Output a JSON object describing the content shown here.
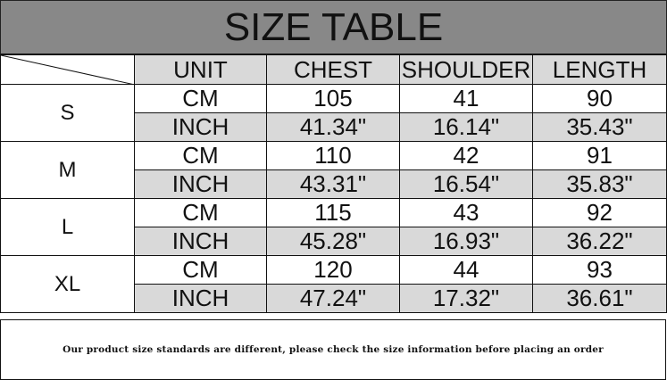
{
  "title": "SIZE TABLE",
  "headers": [
    "UNIT",
    "CHEST",
    "SHOULDER",
    "LENGTH"
  ],
  "rows": [
    {
      "size": "S",
      "cm": {
        "unit": "CM",
        "chest": "105",
        "shoulder": "41",
        "length": "90"
      },
      "inch": {
        "unit": "INCH",
        "chest": "41.34\"",
        "shoulder": "16.14\"",
        "length": "35.43\""
      }
    },
    {
      "size": "M",
      "cm": {
        "unit": "CM",
        "chest": "110",
        "shoulder": "42",
        "length": "91"
      },
      "inch": {
        "unit": "INCH",
        "chest": "43.31\"",
        "shoulder": "16.54\"",
        "length": "35.83\""
      }
    },
    {
      "size": "L",
      "cm": {
        "unit": "CM",
        "chest": "115",
        "shoulder": "43",
        "length": "92"
      },
      "inch": {
        "unit": "INCH",
        "chest": "45.28\"",
        "shoulder": "16.93\"",
        "length": "36.22\""
      }
    },
    {
      "size": "XL",
      "cm": {
        "unit": "CM",
        "chest": "120",
        "shoulder": "44",
        "length": "93"
      },
      "inch": {
        "unit": "INCH",
        "chest": "47.24\"",
        "shoulder": "17.32\"",
        "length": "36.61\""
      }
    }
  ],
  "note": "Our product size standards are different, please check the size information before placing an order",
  "colors": {
    "title_bg": "#888888",
    "shade": "#d9d9d9"
  }
}
